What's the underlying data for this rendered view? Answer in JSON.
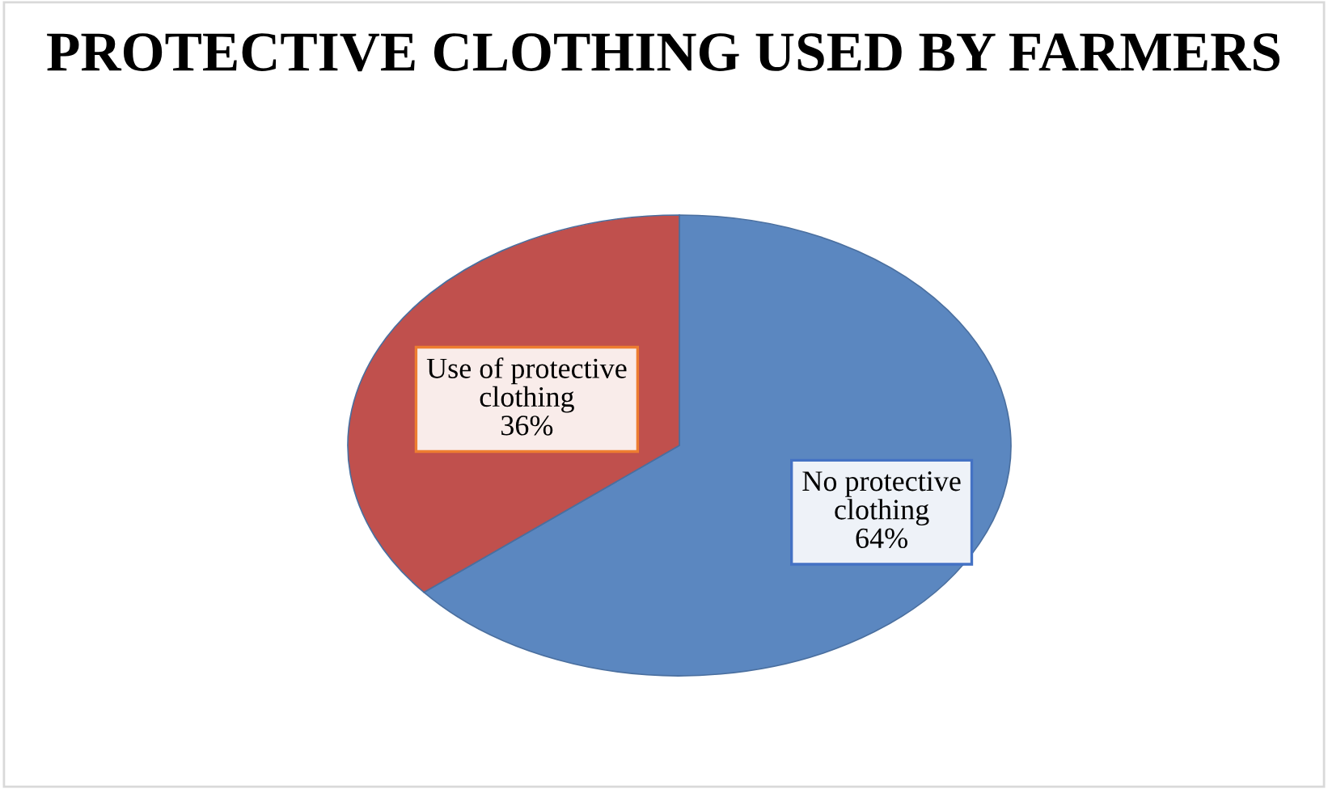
{
  "chart_data": {
    "type": "pie",
    "title": "PROTECTIVE CLOTHING USED BY FARMERS",
    "categories": [
      "No protective clothing",
      "Use of protective clothing"
    ],
    "values": [
      64,
      36
    ],
    "colors": [
      "#5b87c0",
      "#c0504d"
    ],
    "value_labels": [
      "64%",
      "36%"
    ],
    "legend": false
  }
}
